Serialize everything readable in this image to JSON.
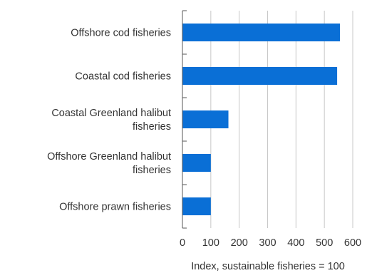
{
  "chart_data": {
    "type": "bar",
    "orientation": "horizontal",
    "categories": [
      "Offshore cod fisheries",
      "Coastal cod fisheries",
      "Coastal Greenland halibut fisheries",
      "Offshore Greenland halibut fisheries",
      "Offshore prawn fisheries"
    ],
    "category_lines": [
      [
        "Offshore cod fisheries"
      ],
      [
        "Coastal cod fisheries"
      ],
      [
        "Coastal Greenland halibut",
        "fisheries"
      ],
      [
        "Offshore Greenland halibut",
        "fisheries"
      ],
      [
        "Offshore prawn fisheries"
      ]
    ],
    "values": [
      555,
      545,
      162,
      100,
      100
    ],
    "xlim": [
      0,
      600
    ],
    "xticks": [
      "0",
      "100",
      "200",
      "300",
      "400",
      "500",
      "600"
    ],
    "xlabel": "Index, sustainable fisheries = 100",
    "title": "",
    "grid": "vertical",
    "bar_color": "#0a6fd6",
    "grid_color": "#c8c8c8",
    "axis_color": "#555555"
  }
}
